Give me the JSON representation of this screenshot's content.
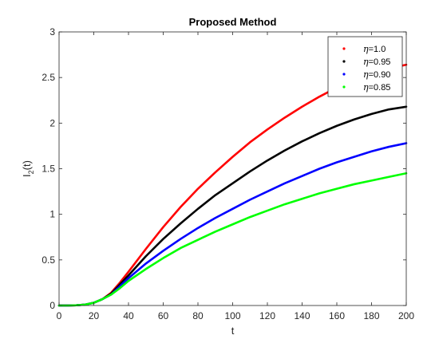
{
  "chart_data": {
    "type": "line",
    "title": "Proposed Method",
    "xlabel": "t",
    "ylabel": {
      "base": "I",
      "subscript": "2",
      "suffix": "(t)"
    },
    "xlim": [
      0,
      200
    ],
    "ylim": [
      0,
      3
    ],
    "xticks": [
      "0",
      "20",
      "40",
      "60",
      "80",
      "100",
      "120",
      "140",
      "160",
      "180",
      "200"
    ],
    "yticks": [
      "0",
      "0.5",
      "1",
      "1.5",
      "2",
      "2.5",
      "3"
    ],
    "grid": false,
    "legend_position": "top-right",
    "x": [
      0,
      5,
      10,
      15,
      20,
      25,
      30,
      35,
      40,
      50,
      60,
      70,
      80,
      90,
      100,
      110,
      120,
      130,
      140,
      150,
      160,
      170,
      180,
      190,
      200
    ],
    "series": [
      {
        "name": "η=1.0",
        "color": "#ff0000",
        "values": [
          0.0,
          0.0,
          0.003,
          0.01,
          0.03,
          0.07,
          0.14,
          0.25,
          0.37,
          0.62,
          0.86,
          1.08,
          1.28,
          1.46,
          1.63,
          1.79,
          1.93,
          2.06,
          2.18,
          2.29,
          2.39,
          2.48,
          2.55,
          2.6,
          2.64
        ]
      },
      {
        "name": "η=0.95",
        "color": "#000000",
        "values": [
          0.0,
          0.0,
          0.003,
          0.01,
          0.03,
          0.07,
          0.13,
          0.23,
          0.33,
          0.54,
          0.73,
          0.9,
          1.06,
          1.21,
          1.34,
          1.47,
          1.59,
          1.7,
          1.8,
          1.89,
          1.97,
          2.04,
          2.1,
          2.15,
          2.18
        ]
      },
      {
        "name": "η=0.90",
        "color": "#0000ff",
        "values": [
          0.0,
          0.0,
          0.003,
          0.01,
          0.03,
          0.07,
          0.12,
          0.21,
          0.3,
          0.46,
          0.6,
          0.73,
          0.85,
          0.96,
          1.06,
          1.16,
          1.25,
          1.34,
          1.42,
          1.5,
          1.57,
          1.63,
          1.69,
          1.74,
          1.78
        ]
      },
      {
        "name": "η=0.85",
        "color": "#00ff00",
        "values": [
          0.0,
          0.0,
          0.003,
          0.01,
          0.03,
          0.07,
          0.12,
          0.19,
          0.27,
          0.4,
          0.52,
          0.63,
          0.72,
          0.81,
          0.89,
          0.97,
          1.04,
          1.11,
          1.17,
          1.23,
          1.28,
          1.33,
          1.37,
          1.41,
          1.45
        ]
      }
    ]
  }
}
